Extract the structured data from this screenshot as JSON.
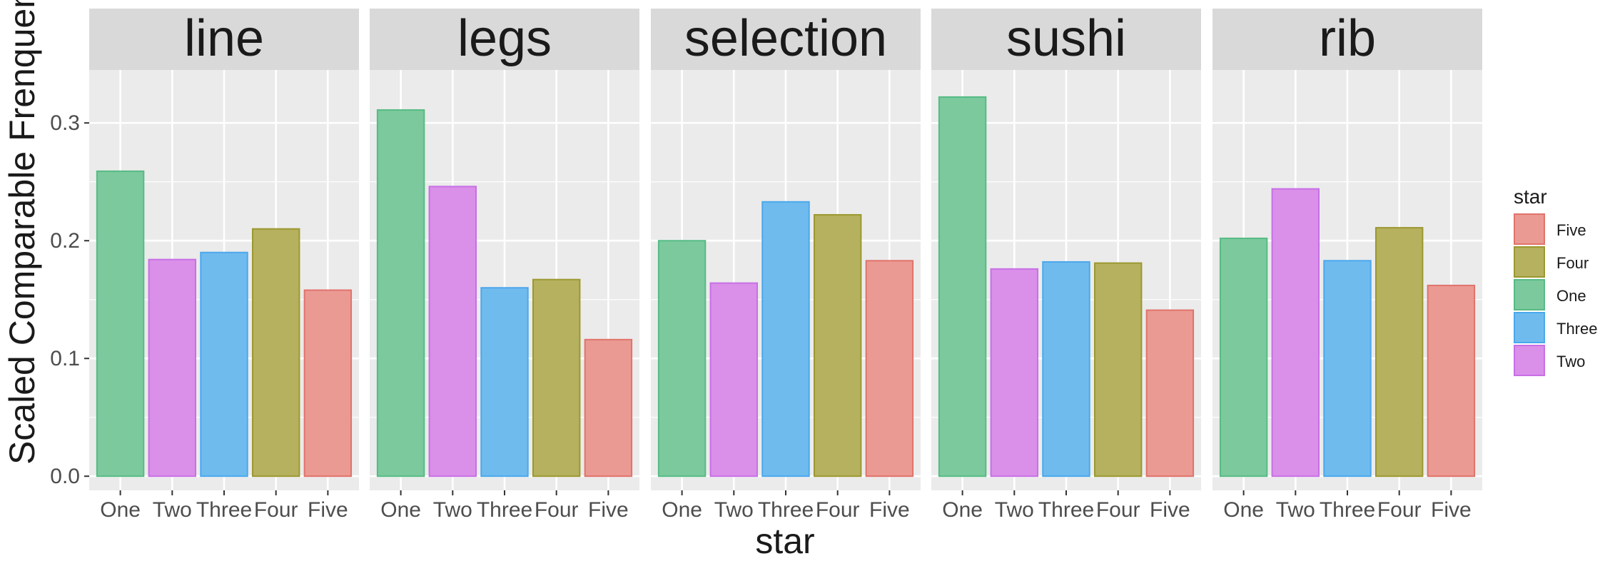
{
  "chart_data": {
    "type": "bar",
    "title": "",
    "xlabel": "star",
    "ylabel": "Scaled Comparable Frenquency",
    "ylim": [
      -0.012,
      0.345
    ],
    "yticks": [
      0.0,
      0.1,
      0.2,
      0.3
    ],
    "ytick_labels": [
      "0.0",
      "0.1",
      "0.2",
      "0.3"
    ],
    "categories": [
      "One",
      "Two",
      "Three",
      "Four",
      "Five"
    ],
    "grid": true,
    "facets": [
      {
        "label": "line",
        "values": [
          0.259,
          0.184,
          0.19,
          0.21,
          0.158
        ]
      },
      {
        "label": "legs",
        "values": [
          0.311,
          0.246,
          0.16,
          0.167,
          0.116
        ]
      },
      {
        "label": "selection",
        "values": [
          0.2,
          0.164,
          0.233,
          0.222,
          0.183
        ]
      },
      {
        "label": "sushi",
        "values": [
          0.322,
          0.176,
          0.182,
          0.181,
          0.141
        ]
      },
      {
        "label": "rib",
        "values": [
          0.202,
          0.244,
          0.183,
          0.211,
          0.162
        ]
      }
    ],
    "legend": {
      "title": "star",
      "position": "right",
      "entries": [
        "Five",
        "Four",
        "One",
        "Three",
        "Two"
      ]
    },
    "colors": {
      "One": "#7cc99e",
      "Two": "#da8fe9",
      "Three": "#70bbee",
      "Four": "#b5b15f",
      "Five": "#ea9a93"
    },
    "stroke_colors": {
      "One": "#56bb84",
      "Two": "#c770e5",
      "Three": "#4aa8ec",
      "Four": "#9c9830",
      "Five": "#e0736b"
    },
    "theme": {
      "panel_bg": "#ebebeb",
      "strip_bg": "#d9d9d9",
      "grid_color": "#ffffff",
      "text_color": "#1a1a1a",
      "tick_text_color": "#4d4d4d"
    }
  }
}
